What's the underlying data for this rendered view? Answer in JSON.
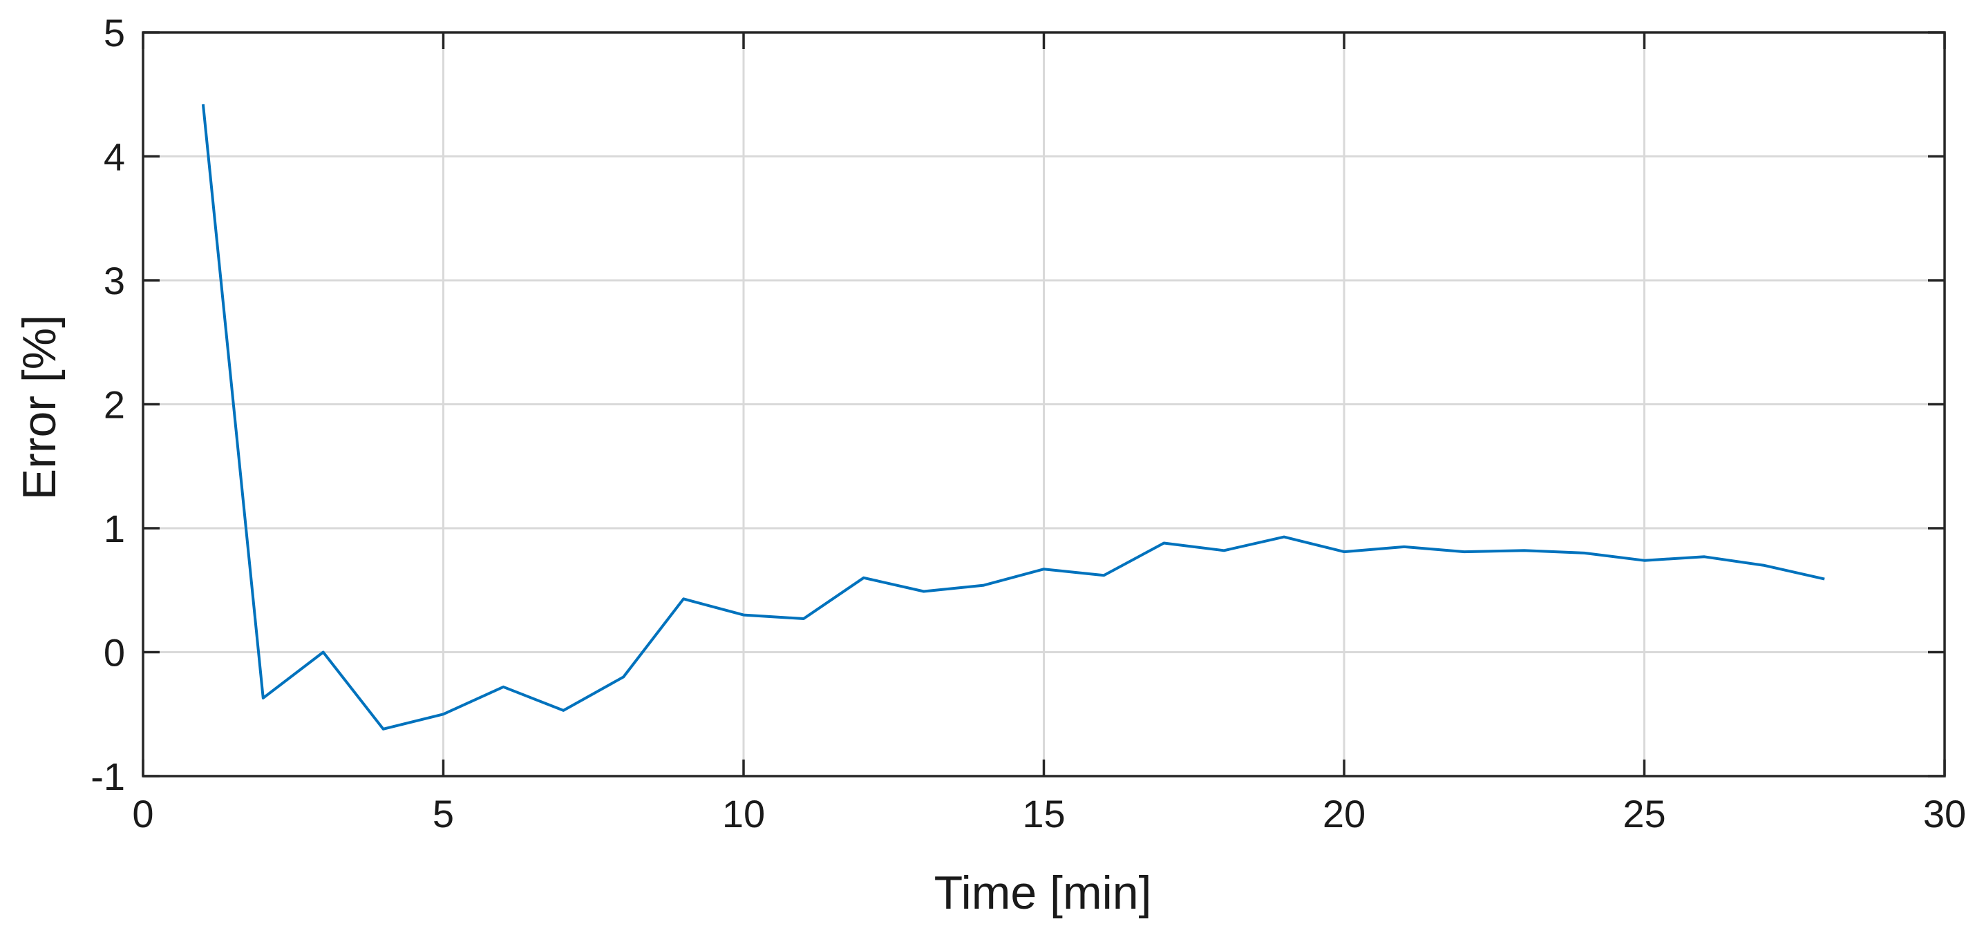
{
  "chart_data": {
    "type": "line",
    "title": "",
    "xlabel": "Time [min]",
    "ylabel": "Error [%]",
    "xlim": [
      0,
      30
    ],
    "ylim": [
      -1,
      5
    ],
    "xticks": [
      0,
      5,
      10,
      15,
      20,
      25,
      30
    ],
    "yticks": [
      -1,
      0,
      1,
      2,
      3,
      4,
      5
    ],
    "xtick_labels": [
      "0",
      "5",
      "10",
      "15",
      "20",
      "25",
      "30"
    ],
    "ytick_labels": [
      "-1",
      "0",
      "1",
      "2",
      "3",
      "4",
      "5"
    ],
    "grid": true,
    "legend": "none",
    "colors": {
      "line": "#0072BD",
      "grid": "#d9d9d9",
      "axes": "#262626"
    },
    "series": [
      {
        "x": [
          1,
          2,
          3,
          4,
          5,
          6,
          7,
          8,
          9,
          10,
          11,
          12,
          13,
          14,
          15,
          16,
          17,
          18,
          19,
          20,
          21,
          22,
          23,
          24,
          25,
          26,
          27,
          28
        ],
        "y": [
          4.42,
          -0.37,
          0.0,
          -0.62,
          -0.5,
          -0.28,
          -0.47,
          -0.2,
          0.43,
          0.3,
          0.27,
          0.6,
          0.49,
          0.54,
          0.67,
          0.62,
          0.88,
          0.82,
          0.93,
          0.81,
          0.85,
          0.81,
          0.82,
          0.8,
          0.74,
          0.77,
          0.7,
          0.59
        ]
      }
    ]
  }
}
